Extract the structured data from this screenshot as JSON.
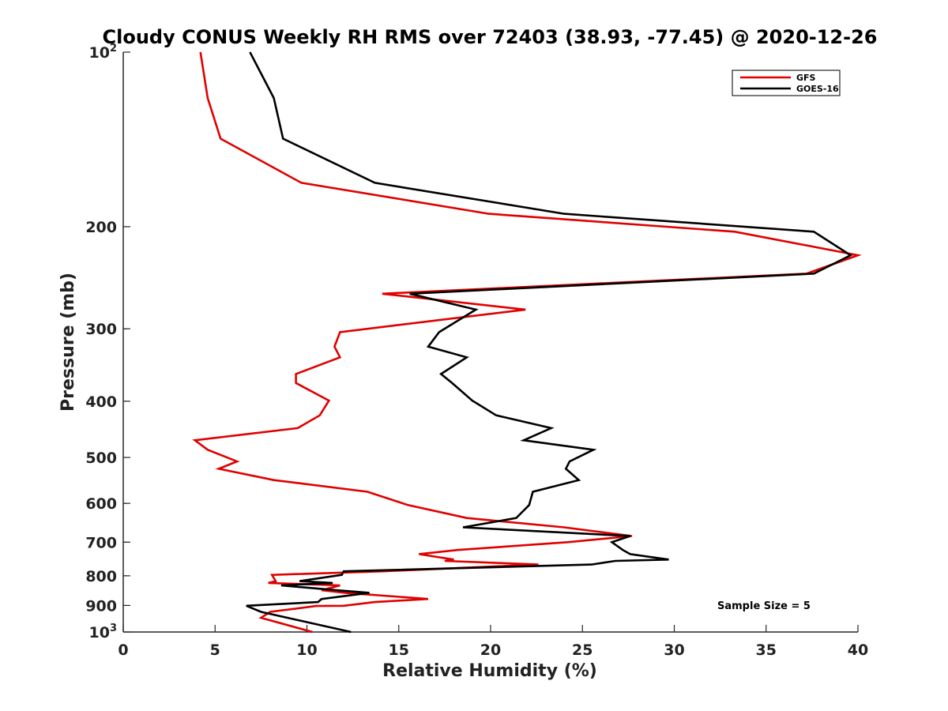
{
  "chart_data": {
    "type": "line",
    "title": "Cloudy CONUS Weekly RH RMS over 72403 (38.93, -77.45) @ 2020-12-26",
    "xlabel": "Relative Humidity (%)",
    "ylabel": "Pressure (mb)",
    "xlim": [
      0,
      40
    ],
    "ylim": [
      100,
      1000
    ],
    "y_scale": "log",
    "y_reversed": true,
    "grid": false,
    "legend_position": "top-right",
    "x_ticks": [
      "0",
      "5",
      "10",
      "15",
      "20",
      "25",
      "30",
      "35",
      "40"
    ],
    "y_ticks": [
      {
        "value": 100,
        "base": "10",
        "exp": "2"
      },
      {
        "value": 200,
        "label": "200"
      },
      {
        "value": 300,
        "label": "300"
      },
      {
        "value": 400,
        "label": "400"
      },
      {
        "value": 500,
        "label": "500"
      },
      {
        "value": 600,
        "label": "600"
      },
      {
        "value": 700,
        "label": "700"
      },
      {
        "value": 800,
        "label": "800"
      },
      {
        "value": 900,
        "label": "900"
      },
      {
        "value": 1000,
        "base": "10",
        "exp": "3"
      }
    ],
    "annotation": "Sample Size = 5",
    "series": [
      {
        "name": "GFS",
        "color": "#e00000",
        "points": [
          [
            4.2,
            100
          ],
          [
            4.6,
            120
          ],
          [
            5.3,
            141
          ],
          [
            9.7,
            168
          ],
          [
            19.9,
            190
          ],
          [
            33.3,
            204
          ],
          [
            40.0,
            224
          ],
          [
            37.2,
            241
          ],
          [
            14.1,
            261
          ],
          [
            21.9,
            278
          ],
          [
            11.8,
            304
          ],
          [
            11.5,
            322
          ],
          [
            11.8,
            336
          ],
          [
            9.4,
            359
          ],
          [
            9.4,
            372
          ],
          [
            11.2,
            399
          ],
          [
            10.7,
            423
          ],
          [
            9.5,
            445
          ],
          [
            3.9,
            467
          ],
          [
            4.6,
            485
          ],
          [
            6.2,
            508
          ],
          [
            5.2,
            523
          ],
          [
            8.2,
            547
          ],
          [
            13.3,
            573
          ],
          [
            15.5,
            604
          ],
          [
            18.7,
            636
          ],
          [
            24.0,
            660
          ],
          [
            27.7,
            683
          ],
          [
            24.2,
            700
          ],
          [
            18.2,
            722
          ],
          [
            16.1,
            734
          ],
          [
            18.0,
            750
          ],
          [
            17.5,
            754
          ],
          [
            22.6,
            765
          ],
          [
            14.1,
            786
          ],
          [
            8.1,
            797
          ],
          [
            8.3,
            817
          ],
          [
            7.9,
            823
          ],
          [
            11.8,
            831
          ],
          [
            10.8,
            847
          ],
          [
            12.1,
            856
          ],
          [
            16.6,
            877
          ],
          [
            13.7,
            888
          ],
          [
            12.0,
            901
          ],
          [
            10.5,
            902
          ],
          [
            8.0,
            923
          ],
          [
            7.5,
            945
          ],
          [
            10.3,
            1000
          ]
        ]
      },
      {
        "name": "GOES-16",
        "color": "#000000",
        "points": [
          [
            6.9,
            100
          ],
          [
            8.2,
            120
          ],
          [
            8.7,
            141
          ],
          [
            13.7,
            168
          ],
          [
            24.0,
            190
          ],
          [
            37.6,
            204
          ],
          [
            39.6,
            224
          ],
          [
            37.6,
            241
          ],
          [
            15.6,
            261
          ],
          [
            19.2,
            278
          ],
          [
            17.2,
            304
          ],
          [
            16.6,
            322
          ],
          [
            18.7,
            336
          ],
          [
            17.3,
            359
          ],
          [
            17.9,
            372
          ],
          [
            19.0,
            399
          ],
          [
            20.3,
            423
          ],
          [
            23.3,
            445
          ],
          [
            21.8,
            467
          ],
          [
            25.6,
            485
          ],
          [
            24.3,
            508
          ],
          [
            24.1,
            523
          ],
          [
            24.8,
            547
          ],
          [
            22.3,
            573
          ],
          [
            22.1,
            604
          ],
          [
            21.4,
            636
          ],
          [
            18.5,
            660
          ],
          [
            27.6,
            683
          ],
          [
            26.6,
            700
          ],
          [
            27.2,
            722
          ],
          [
            27.6,
            734
          ],
          [
            29.7,
            750
          ],
          [
            26.8,
            754
          ],
          [
            25.5,
            765
          ],
          [
            12.0,
            786
          ],
          [
            11.9,
            797
          ],
          [
            9.6,
            817
          ],
          [
            11.4,
            823
          ],
          [
            8.6,
            831
          ],
          [
            11.6,
            847
          ],
          [
            13.4,
            856
          ],
          [
            10.8,
            877
          ],
          [
            10.6,
            888
          ],
          [
            6.7,
            901
          ],
          [
            7.5,
            923
          ],
          [
            12.4,
            1000
          ]
        ]
      }
    ]
  }
}
